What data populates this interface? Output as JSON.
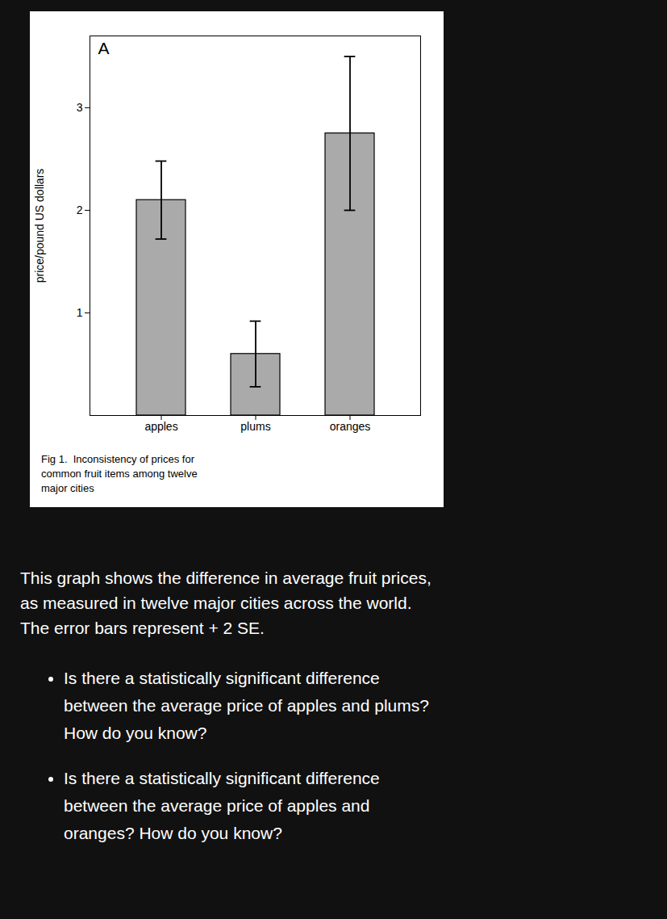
{
  "chart_data": {
    "type": "bar",
    "categories": [
      "apples",
      "plums",
      "oranges"
    ],
    "values": [
      2.1,
      0.6,
      2.75
    ],
    "errors": [
      0.38,
      0.32,
      0.75
    ],
    "color": "#aaaaaa",
    "ylabel": "price/pound US dollars",
    "ylim": [
      0,
      3.7
    ],
    "yticks": [
      1,
      2,
      3
    ],
    "annotations": [
      "A"
    ],
    "caption": [
      "Fig 1.  Inconsistency of prices for",
      "common fruit items among twelve",
      "major cities"
    ],
    "paragraph": [
      "This graph shows the difference in average fruit prices,",
      "as measured in twelve major cities across the world.",
      "The error bars represent + 2 SE."
    ],
    "bullets": [
      [
        "Is there a statistically significant difference",
        "between the average price of apples and plums?",
        "How do you know?"
      ],
      [
        "Is there a statistically significant difference",
        "between the average price of apples and",
        "oranges? How do you know?"
      ]
    ]
  }
}
